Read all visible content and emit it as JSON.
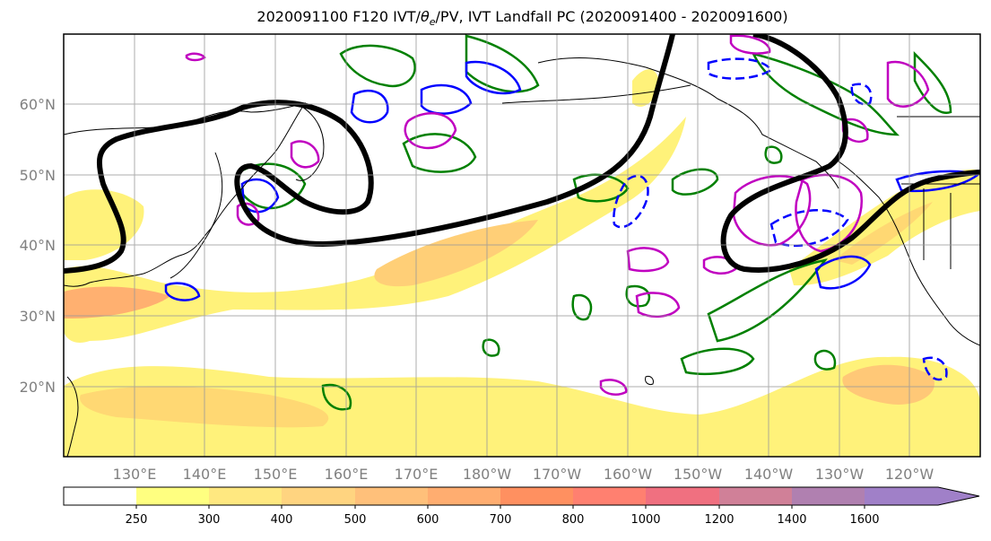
{
  "title": "2020091100 F120 IVT/θe/PV, IVT Landfall PC (2020091400 - 2020091600)",
  "title_parts": {
    "prefix": "2020091100 F120 IVT/",
    "theta": "θ",
    "subscript": "e",
    "suffix": "/PV, IVT Landfall PC (2020091400 - 2020091600)"
  },
  "map": {
    "lon_labels": [
      "130°E",
      "140°E",
      "150°E",
      "160°E",
      "170°E",
      "180°W",
      "170°W",
      "160°W",
      "150°W",
      "140°W",
      "130°W",
      "120°W"
    ],
    "lat_labels": [
      "60°N",
      "50°N",
      "40°N",
      "30°N",
      "20°N"
    ],
    "label_color": "#808080",
    "grid_color": "#999999",
    "ivt_fill_colors": [
      "#ffff66",
      "#ffdf66",
      "#ffcc66",
      "#ffb366",
      "#ff9966",
      "#ff8066",
      "#f07070",
      "#e07a8a",
      "#c080a0",
      "#a080c0"
    ],
    "contour_colors": {
      "pv": "#000000",
      "theta_e_green": "#008000",
      "blue": "#0000ff",
      "magenta": "#c000c0"
    }
  },
  "colorbar": {
    "ticks": [
      "250",
      "300",
      "400",
      "500",
      "600",
      "700",
      "800",
      "1000",
      "1200",
      "1400",
      "1600"
    ],
    "colors": [
      "#ffffff",
      "#ffff80",
      "#ffe880",
      "#ffd480",
      "#ffc07a",
      "#ffad70",
      "#ff9060",
      "#ff8070",
      "#f07080",
      "#d08098",
      "#b080b0",
      "#a080c8"
    ]
  }
}
